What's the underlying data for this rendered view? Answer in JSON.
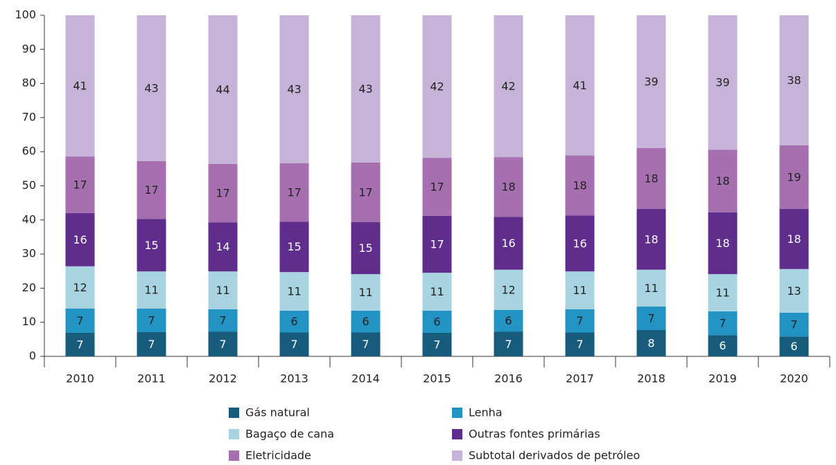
{
  "chart_data": {
    "type": "stacked_bar",
    "categories": [
      "2010",
      "2011",
      "2012",
      "2013",
      "2014",
      "2015",
      "2016",
      "2017",
      "2018",
      "2019",
      "2020"
    ],
    "ylim": [
      0,
      100
    ],
    "yticks": [
      0,
      10,
      20,
      30,
      40,
      50,
      60,
      70,
      80,
      90,
      100
    ],
    "series": [
      {
        "name": "Gás natural",
        "color": "#175c7d",
        "values": [
          6.9,
          7.1,
          7.2,
          7.0,
          7.0,
          6.9,
          7.2,
          7.0,
          7.7,
          6.2,
          5.8
        ],
        "value_labels": [
          "7",
          "7",
          "7",
          "7",
          "7",
          "7",
          "7",
          "7",
          "8",
          "6",
          "6"
        ]
      },
      {
        "name": "Lenha",
        "color": "#2293c2",
        "values": [
          7.1,
          6.9,
          6.6,
          6.4,
          6.4,
          6.5,
          6.4,
          6.8,
          6.9,
          7.0,
          7.0
        ],
        "value_labels": [
          "7",
          "7",
          "7",
          "6",
          "6",
          "6",
          "6",
          "7",
          "7",
          "7",
          "7"
        ]
      },
      {
        "name": "Bagaço de cana",
        "color": "#a8d4e2",
        "values": [
          12.4,
          10.9,
          11.1,
          11.3,
          10.7,
          11.1,
          11.8,
          11.1,
          10.8,
          10.9,
          12.8
        ],
        "value_labels": [
          "12",
          "11",
          "11",
          "11",
          "11",
          "11",
          "12",
          "11",
          "11",
          "11",
          "13"
        ]
      },
      {
        "name": "Outras fontes primárias",
        "color": "#5f2d8c",
        "values": [
          15.6,
          15.4,
          14.4,
          14.8,
          15.3,
          16.7,
          15.5,
          16.4,
          17.8,
          18.1,
          17.6
        ],
        "value_labels": [
          "16",
          "15",
          "14",
          "15",
          "15",
          "17",
          "16",
          "16",
          "18",
          "18",
          "18"
        ]
      },
      {
        "name": "Eletricidade",
        "color": "#a66fb0",
        "values": [
          16.6,
          16.9,
          17.1,
          17.1,
          17.4,
          17.0,
          17.5,
          17.6,
          17.9,
          18.4,
          18.7
        ],
        "value_labels": [
          "17",
          "17",
          "17",
          "17",
          "17",
          "17",
          "18",
          "18",
          "18",
          "18",
          "19"
        ]
      },
      {
        "name": "Subtotal derivados de petróleo",
        "color": "#c6b3d8",
        "values": [
          41.4,
          42.8,
          43.6,
          43.4,
          43.2,
          41.8,
          41.6,
          41.1,
          38.9,
          39.4,
          38.1
        ],
        "value_labels": [
          "41",
          "43",
          "44",
          "43",
          "43",
          "42",
          "42",
          "41",
          "39",
          "39",
          "38"
        ]
      }
    ]
  }
}
